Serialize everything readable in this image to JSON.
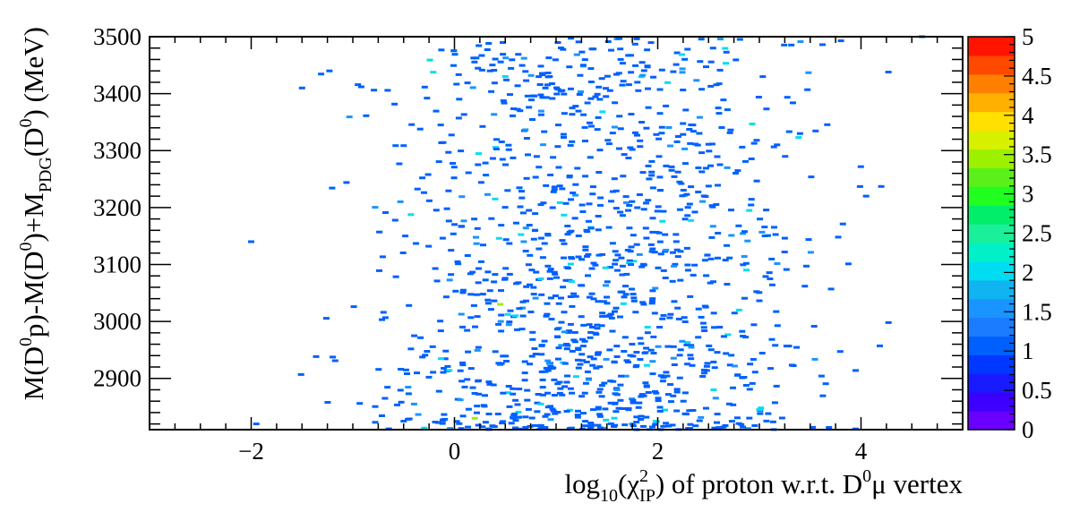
{
  "chart_data": {
    "type": "heatmap",
    "title": "",
    "xlabel": {
      "pre": "log",
      "pre_sub": "10",
      "open": "(",
      "chi": "χ",
      "chi_sup": "2",
      "chi_sub": "IP",
      "post": ") of proton w.r.t. D",
      "post_sup": "0",
      "post_end": "μ vertex"
    },
    "ylabel": {
      "p1": "M(D",
      "p1_sup": "0",
      "p2": "p)-M(D",
      "p2_sup": "0",
      "p3": ")+M",
      "p3_sub": "PDG",
      "p4": "(D",
      "p4_sup": "0",
      "p5": ") (MeV)"
    },
    "xlim": [
      -3,
      5
    ],
    "ylim": [
      2810,
      3500
    ],
    "x_ticks": [
      {
        "value": -2,
        "label": "−2"
      },
      {
        "value": 0,
        "label": "0"
      },
      {
        "value": 2,
        "label": "2"
      },
      {
        "value": 4,
        "label": "4"
      }
    ],
    "y_ticks": [
      {
        "value": 2900,
        "label": "2900"
      },
      {
        "value": 3000,
        "label": "3000"
      },
      {
        "value": 3100,
        "label": "3100"
      },
      {
        "value": 3200,
        "label": "3200"
      },
      {
        "value": 3300,
        "label": "3300"
      },
      {
        "value": 3400,
        "label": "3400"
      },
      {
        "value": 3500,
        "label": "3500"
      }
    ],
    "z_range": [
      0,
      5
    ],
    "z_ticks": [
      {
        "value": 0,
        "label": "0"
      },
      {
        "value": 0.5,
        "label": "0.5"
      },
      {
        "value": 1,
        "label": "1"
      },
      {
        "value": 1.5,
        "label": "1.5"
      },
      {
        "value": 2,
        "label": "2"
      },
      {
        "value": 2.5,
        "label": "2.5"
      },
      {
        "value": 3,
        "label": "3"
      },
      {
        "value": 3.5,
        "label": "3.5"
      },
      {
        "value": 4,
        "label": "4"
      },
      {
        "value": 4.5,
        "label": "4.5"
      },
      {
        "value": 5,
        "label": "5"
      }
    ],
    "colorscale": [
      "#6a00ff",
      "#3d00ff",
      "#1a1aff",
      "#0038ff",
      "#0060ff",
      "#1c7cff",
      "#1a94ff",
      "#10b4f0",
      "#00ddf0",
      "#00f0c8",
      "#1af09a",
      "#00ee6a",
      "#20ff20",
      "#5cf01a",
      "#9cf000",
      "#d6f000",
      "#ffe000",
      "#ffb000",
      "#ff8000",
      "#ff4800",
      "#ff1400"
    ],
    "cells": [
      {
        "x": 0.35,
        "y": 3440,
        "z": 1
      },
      {
        "x": 0.5,
        "y": 3430,
        "z": 2
      },
      {
        "x": 1.8,
        "y": 3420,
        "z": 1
      },
      {
        "x": 3.4,
        "y": 3330,
        "z": 1
      },
      {
        "x": 4.05,
        "y": 3220,
        "z": 1
      },
      {
        "x": 2.9,
        "y": 3195,
        "z": 2
      },
      {
        "x": 0.4,
        "y": 3215,
        "z": 2
      },
      {
        "x": 1.3,
        "y": 3160,
        "z": 1
      },
      {
        "x": 0.85,
        "y": 3075,
        "z": 2
      },
      {
        "x": 2.3,
        "y": 3090,
        "z": 1
      },
      {
        "x": 0.45,
        "y": 3030,
        "z": 3.5
      },
      {
        "x": 0.6,
        "y": 3010,
        "z": 2
      },
      {
        "x": 1.9,
        "y": 2990,
        "z": 2
      },
      {
        "x": 2.8,
        "y": 3020,
        "z": 2
      },
      {
        "x": 1.95,
        "y": 2930,
        "z": 1.5
      },
      {
        "x": 1.6,
        "y": 2880,
        "z": 1.5
      },
      {
        "x": 0.3,
        "y": 2870,
        "z": 1
      },
      {
        "x": 0.85,
        "y": 2855,
        "z": 2
      },
      {
        "x": 2.55,
        "y": 2880,
        "z": 2
      },
      {
        "x": 0.2,
        "y": 2830,
        "z": 3.5
      },
      {
        "x": 3.0,
        "y": 2845,
        "z": 2
      },
      {
        "x": -1.95,
        "y": 2820,
        "z": 1
      },
      {
        "x": -2.0,
        "y": 3140,
        "z": 1
      },
      {
        "x": -1.5,
        "y": 3410,
        "z": 1
      },
      {
        "x": 4.6,
        "y": 3500,
        "z": 1
      },
      {
        "x": -0.5,
        "y": 2825,
        "z": 1
      }
    ]
  }
}
